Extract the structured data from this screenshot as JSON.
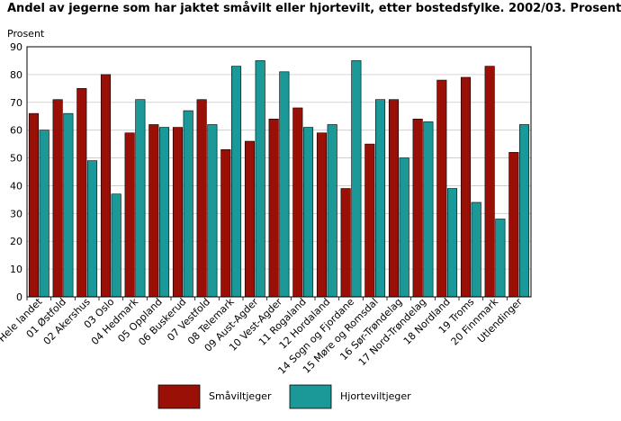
{
  "chart_data": {
    "type": "bar",
    "title": "Andel av jegerne som har jaktet småvilt eller hjortevilt, etter bostedsfylke. 2002/03. Prosent",
    "ylabel": "Prosent",
    "ylim": [
      0,
      90
    ],
    "yticks": [
      0,
      10,
      20,
      30,
      40,
      50,
      60,
      70,
      80,
      90
    ],
    "grid": true,
    "legend_position": "bottom",
    "categories": [
      "Hele landet",
      "01 Østfold",
      "02 Akershus",
      "03 Oslo",
      "04 Hedmark",
      "05 Oppland",
      "06 Buskerud",
      "07 Vestfold",
      "08 Telemark",
      "09 Aust-Agder",
      "10 Vest-Agder",
      "11 Rogaland",
      "12 Hordaland",
      "14 Sogn og Fjordane",
      "15 Møre og Romsdal",
      "16 Sør-Trøndelag",
      "17 Nord-Trøndelag",
      "18 Nordland",
      "19 Troms",
      "20 Finnmark",
      "Utlendinger"
    ],
    "series": [
      {
        "name": "Småviltjeger",
        "color": "#9b1006",
        "values": [
          66,
          71,
          75,
          80,
          59,
          62,
          61,
          71,
          53,
          56,
          64,
          68,
          59,
          39,
          55,
          71,
          64,
          78,
          79,
          83,
          52
        ]
      },
      {
        "name": "Hjorteviltjeger",
        "color": "#1b9898",
        "values": [
          60,
          66,
          49,
          37,
          71,
          61,
          67,
          62,
          83,
          85,
          81,
          61,
          62,
          85,
          71,
          50,
          63,
          39,
          34,
          28,
          62
        ]
      }
    ]
  }
}
